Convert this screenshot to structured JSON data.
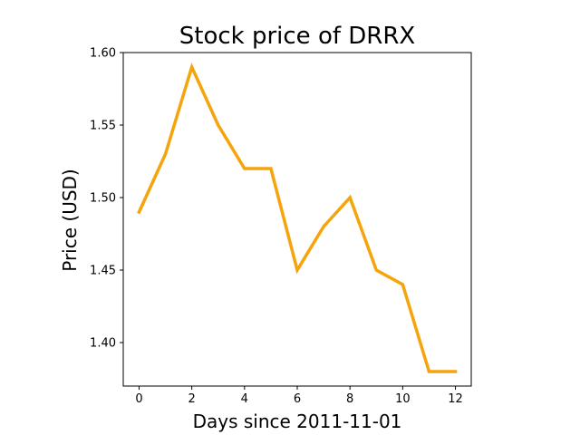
{
  "chart_data": {
    "type": "line",
    "title": "Stock price of DRRX",
    "xlabel": "Days since 2011-11-01",
    "ylabel": "Price (USD)",
    "x": [
      0,
      1,
      2,
      3,
      4,
      5,
      6,
      7,
      8,
      9,
      10,
      11,
      12
    ],
    "series": [
      {
        "values": [
          1.49,
          1.53,
          1.59,
          1.55,
          1.52,
          1.52,
          1.45,
          1.48,
          1.5,
          1.45,
          1.44,
          1.38,
          1.38
        ],
        "color": "#f5a40c"
      }
    ],
    "xlim": [
      -0.6,
      12.6
    ],
    "ylim": [
      1.37,
      1.6
    ],
    "x_ticks": [
      "0",
      "2",
      "4",
      "6",
      "8",
      "10",
      "12"
    ],
    "y_ticks": [
      "1.40",
      "1.45",
      "1.50",
      "1.55",
      "1.60"
    ],
    "grid": false,
    "legend": "none"
  }
}
